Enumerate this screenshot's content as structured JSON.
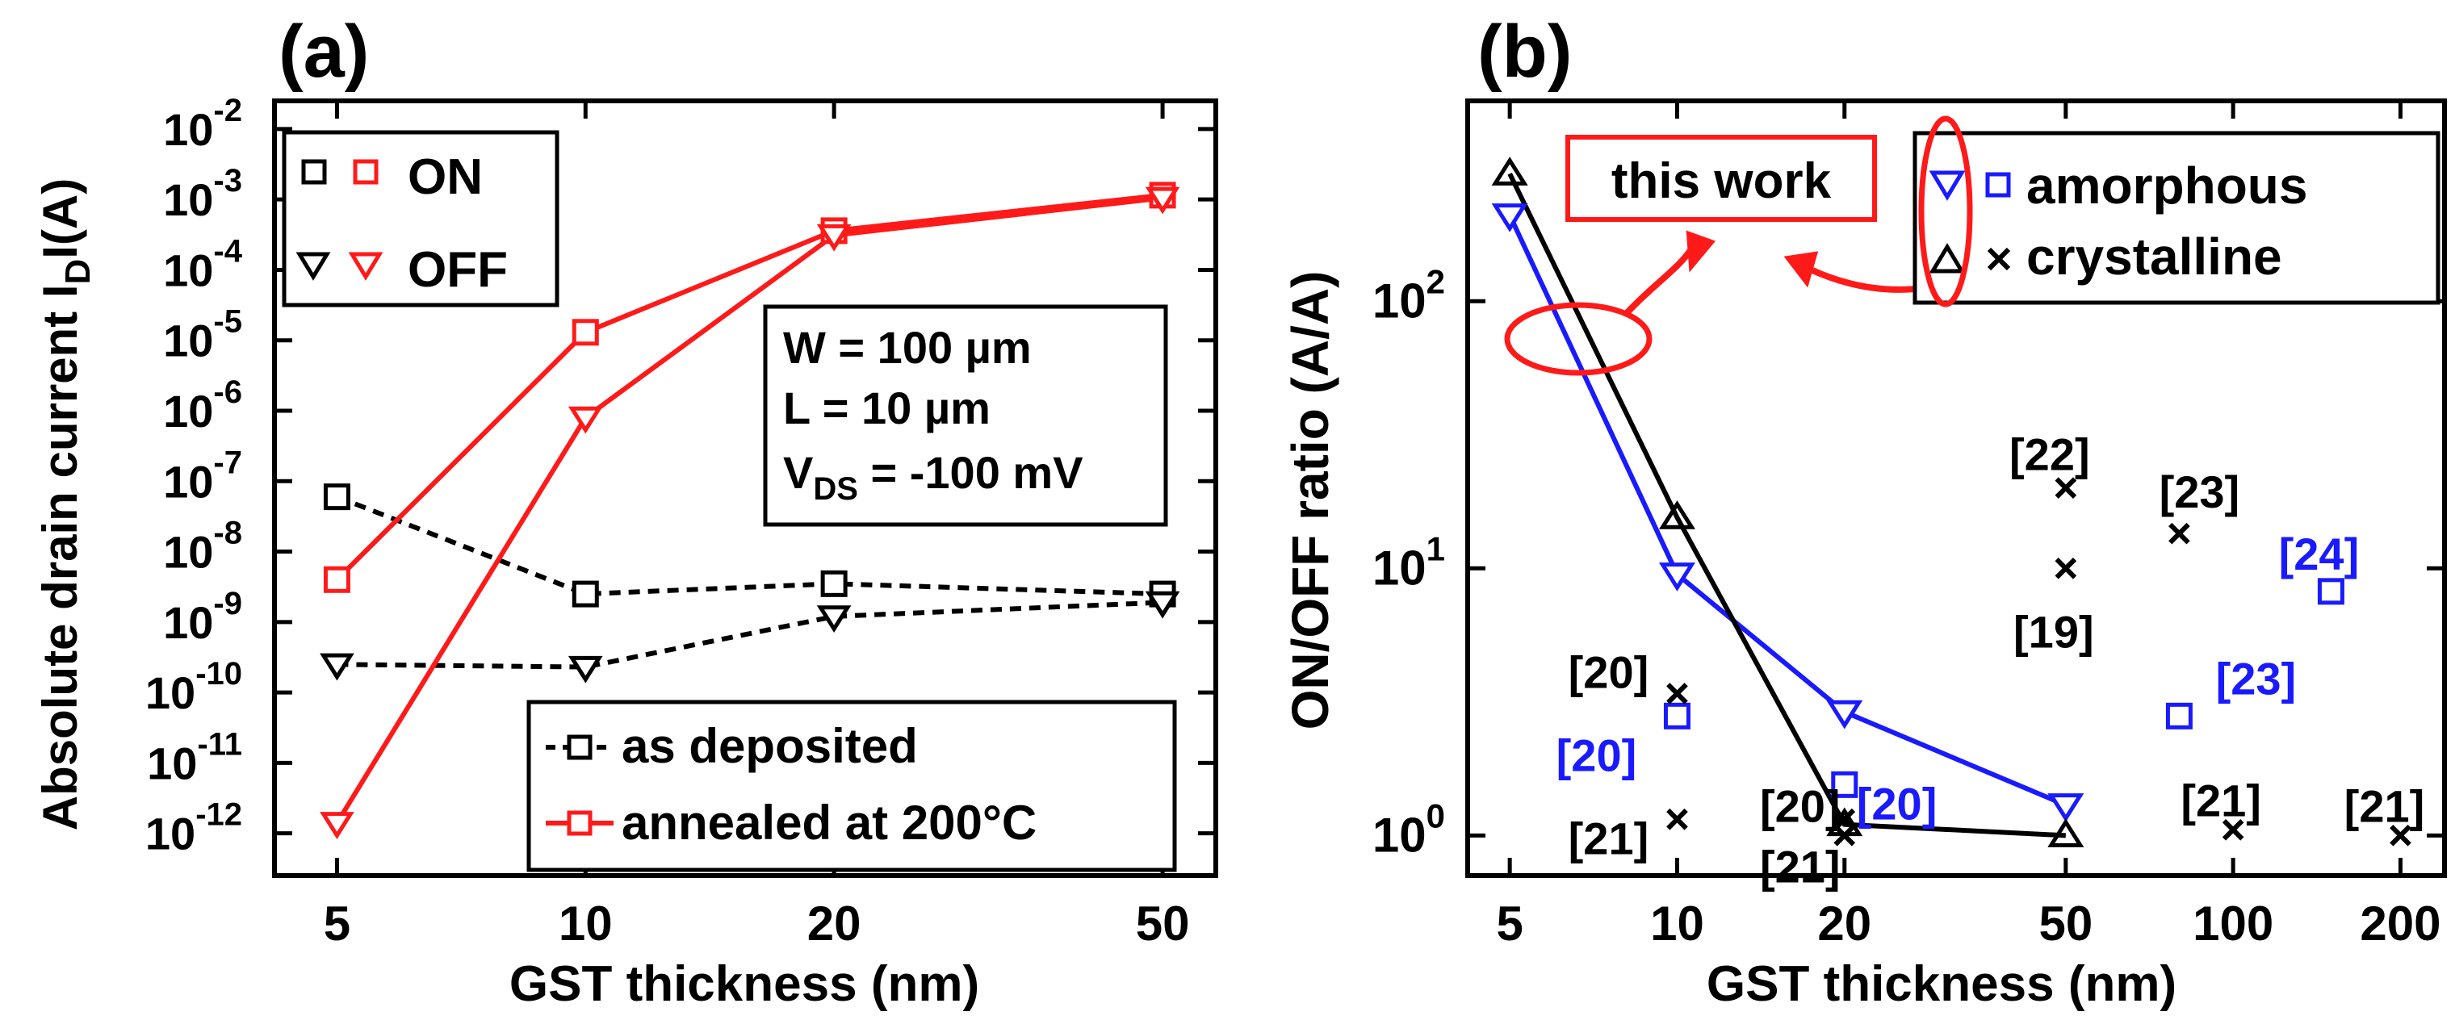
{
  "colors": {
    "black": "#000000",
    "red": "#ff1a1a",
    "blue": "#1a1aff"
  },
  "chart_data": [
    {
      "id": "a",
      "type": "line",
      "panel_label": "(a)",
      "x_scale": "log",
      "y_scale": "log",
      "xlabel": "GST thickness (nm)",
      "ylabel": {
        "text": "Absolute drain current I",
        "sub": "D",
        "suffix": "I(A)"
      },
      "xlim": [
        4.2,
        58
      ],
      "ylim_exp": [
        -12.6,
        -1.6
      ],
      "x_ticks": [
        5,
        10,
        20,
        50
      ],
      "x_tick_labels": [
        "5",
        "10",
        "20",
        "50"
      ],
      "y_ticks_exp": [
        -12,
        -11,
        -10,
        -9,
        -8,
        -7,
        -6,
        -5,
        -4,
        -3,
        -2
      ],
      "y_tick_labels": [
        "-12",
        "-11",
        "-10",
        "-9",
        "-8",
        "-7",
        "-6",
        "-5",
        "-4",
        "-3",
        "-2"
      ],
      "y_tick_base": "10",
      "series": [
        {
          "name": "as deposited ON",
          "state": "ON",
          "condition": "as deposited",
          "color": "black",
          "dashed": true,
          "marker": "square",
          "x": [
            5,
            10,
            20,
            50
          ],
          "y": [
            6e-08,
            2.5e-09,
            3.5e-09,
            2.5e-09
          ]
        },
        {
          "name": "as deposited OFF",
          "state": "OFF",
          "condition": "as deposited",
          "color": "black",
          "dashed": true,
          "marker": "triangle-down",
          "x": [
            5,
            10,
            20,
            50
          ],
          "y": [
            2.5e-10,
            2.3e-10,
            1.2e-09,
            1.9e-09
          ]
        },
        {
          "name": "annealed ON",
          "state": "ON",
          "condition": "annealed at 200°C",
          "color": "red",
          "dashed": false,
          "marker": "square",
          "x": [
            5,
            10,
            20,
            50
          ],
          "y": [
            4e-09,
            1.3e-05,
            0.00036,
            0.00115
          ]
        },
        {
          "name": "annealed OFF",
          "state": "OFF",
          "condition": "annealed at 200°C",
          "color": "red",
          "dashed": false,
          "marker": "triangle-down",
          "x": [
            5,
            10,
            20,
            50
          ],
          "y": [
            1.4e-12,
            8e-07,
            0.00031,
            0.00105
          ]
        }
      ],
      "legend_marker": {
        "on_label": "ON",
        "off_label": "OFF",
        "position": "top-left"
      },
      "legend_line": {
        "entries": [
          "as deposited",
          "annealed at 200°C"
        ],
        "position": "bottom-right"
      },
      "annotation_box": {
        "w_line": "W = 100 µm",
        "l_line": "L = 10 µm",
        "vds_prefix": "V",
        "vds_sub": "DS",
        "vds_suffix": " = -100 mV"
      }
    },
    {
      "id": "b",
      "type": "scatter",
      "panel_label": "(b)",
      "x_scale": "log",
      "y_scale": "log",
      "xlabel": "GST thickness (nm)",
      "ylabel": "ON/OFF ratio (A/A)",
      "xlim": [
        4.2,
        240
      ],
      "ylim_exp": [
        -0.15,
        2.75
      ],
      "x_ticks": [
        5,
        10,
        20,
        50,
        100,
        200
      ],
      "x_tick_labels": [
        "5",
        "10",
        "20",
        "50",
        "100",
        "200"
      ],
      "y_ticks_exp": [
        0,
        1,
        2
      ],
      "y_tick_labels": [
        "0",
        "1",
        "2"
      ],
      "y_tick_base": "10",
      "series": [
        {
          "name": "this work amorphous",
          "color": "blue",
          "marker": "triangle-down",
          "line": true,
          "x": [
            5,
            10,
            20,
            50
          ],
          "y": [
            210,
            9.5,
            2.9,
            1.3
          ]
        },
        {
          "name": "this work crystalline",
          "color": "black",
          "marker": "triangle-up",
          "line": true,
          "x": [
            5,
            10,
            20,
            50
          ],
          "y": [
            300,
            15.5,
            1.1,
            1.0
          ]
        }
      ],
      "literature": [
        {
          "x": 10,
          "y": 2.8,
          "phase": "amorphous",
          "ref": "[20]"
        },
        {
          "x": 20,
          "y": 1.55,
          "phase": "amorphous",
          "ref": "[20]"
        },
        {
          "x": 80,
          "y": 2.8,
          "phase": "amorphous",
          "ref": "[23]"
        },
        {
          "x": 150,
          "y": 8.2,
          "phase": "amorphous",
          "ref": "[24]"
        },
        {
          "x": 10,
          "y": 3.4,
          "phase": "crystalline",
          "ref": "[20]"
        },
        {
          "x": 10,
          "y": 1.15,
          "phase": "crystalline",
          "ref": "[21]"
        },
        {
          "x": 20,
          "y": 1.15,
          "phase": "crystalline",
          "ref": "[20]"
        },
        {
          "x": 20,
          "y": 1.0,
          "phase": "crystalline",
          "ref": "[21]"
        },
        {
          "x": 50,
          "y": 20,
          "phase": "crystalline",
          "ref": "[22]"
        },
        {
          "x": 50,
          "y": 10,
          "phase": "crystalline",
          "ref": "[19]"
        },
        {
          "x": 80,
          "y": 13.5,
          "phase": "crystalline",
          "ref": "[23]"
        },
        {
          "x": 100,
          "y": 1.05,
          "phase": "crystalline",
          "ref": "[21]"
        },
        {
          "x": 200,
          "y": 1.0,
          "phase": "crystalline",
          "ref": "[21]"
        }
      ],
      "legend": {
        "entries": [
          "amorphous",
          "crystalline"
        ],
        "position": "top-right"
      },
      "callout": "this work"
    }
  ]
}
